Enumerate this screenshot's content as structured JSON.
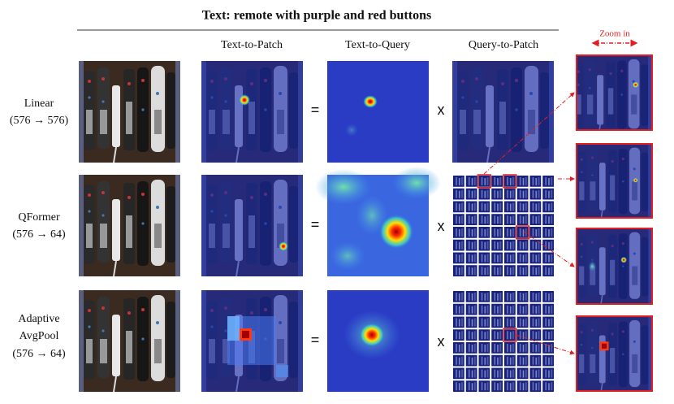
{
  "title": "Text: remote with purple and red buttons",
  "columns": [
    "Text-to-Patch",
    "Text-to-Query",
    "Query-to-Patch"
  ],
  "zoom_label": "Zoom in",
  "rows": [
    {
      "label": [
        "Linear",
        "(576 → 576)"
      ],
      "equals": "=",
      "times": "x"
    },
    {
      "label": [
        "QFormer",
        "(576 → 64)"
      ],
      "equals": "=",
      "times": "x"
    },
    {
      "label": [
        "Adaptive",
        "AvgPool",
        "(576 → 64)"
      ],
      "equals": "=",
      "times": "x"
    }
  ]
}
